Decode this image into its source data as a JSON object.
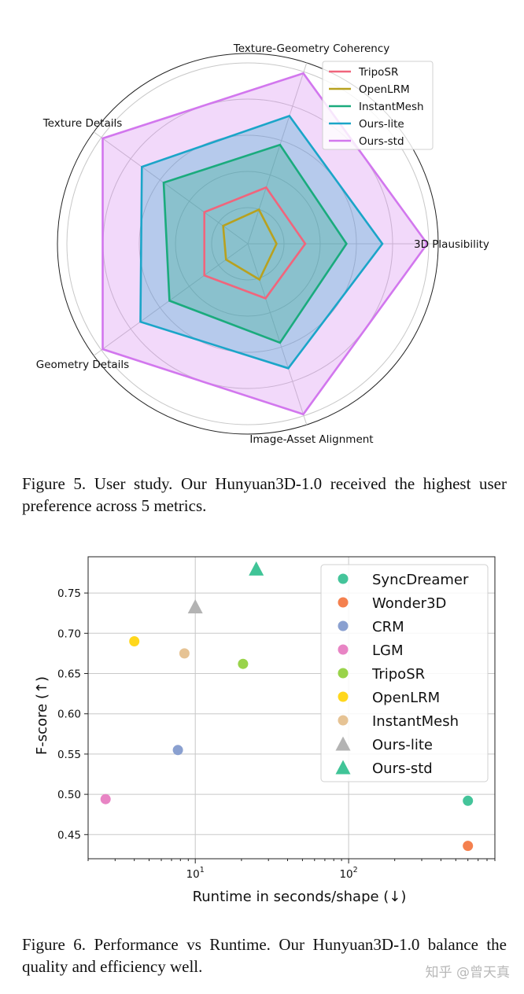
{
  "chart_data": [
    {
      "type": "radar",
      "axes": [
        "3D Plausibility",
        "Texture-Geometry Coherency",
        "Texture Details",
        "Geometry Details",
        "Image-Asset Alignment"
      ],
      "rmax": 1.0,
      "series": [
        {
          "name": "TripoSR",
          "color": "#f0657c",
          "fill": false,
          "values": [
            0.32,
            0.33,
            0.3,
            0.3,
            0.32
          ]
        },
        {
          "name": "OpenLRM",
          "color": "#b8a11f",
          "fill": false,
          "values": [
            0.16,
            0.2,
            0.17,
            0.15,
            0.21
          ]
        },
        {
          "name": "InstantMesh",
          "color": "#1aab7d",
          "fill": true,
          "values": [
            0.55,
            0.58,
            0.58,
            0.54,
            0.58
          ]
        },
        {
          "name": "Ours-lite",
          "color": "#1ba5c8",
          "fill": true,
          "values": [
            0.75,
            0.75,
            0.73,
            0.74,
            0.73
          ]
        },
        {
          "name": "Ours-std",
          "color": "#d277ee",
          "fill": true,
          "values": [
            1.0,
            1.0,
            1.0,
            1.0,
            1.0
          ]
        }
      ]
    },
    {
      "type": "scatter",
      "xscale": "log",
      "xlabel": "Runtime in seconds/shape (↓)",
      "ylabel": "F-score (↑)",
      "xlim": [
        2.0,
        900
      ],
      "ylim": [
        0.42,
        0.795
      ],
      "yticks": [
        "0.45",
        "0.50",
        "0.55",
        "0.60",
        "0.65",
        "0.70",
        "0.75"
      ],
      "xticks": [
        {
          "value": 10,
          "label": "10",
          "sup": "1"
        },
        {
          "value": 100,
          "label": "10",
          "sup": "2"
        }
      ],
      "series": [
        {
          "name": "SyncDreamer",
          "color": "#44c49a",
          "marker": "circle",
          "x": 600,
          "y": 0.492
        },
        {
          "name": "Wonder3D",
          "color": "#f4804e",
          "marker": "circle",
          "x": 600,
          "y": 0.436
        },
        {
          "name": "CRM",
          "color": "#8aa0d0",
          "marker": "circle",
          "x": 7.7,
          "y": 0.555
        },
        {
          "name": "LGM",
          "color": "#e884c4",
          "marker": "circle",
          "x": 2.6,
          "y": 0.494
        },
        {
          "name": "TripoSR",
          "color": "#99d34a",
          "marker": "circle",
          "x": 20.5,
          "y": 0.662
        },
        {
          "name": "OpenLRM",
          "color": "#ffd71c",
          "marker": "circle",
          "x": 4.0,
          "y": 0.69
        },
        {
          "name": "InstantMesh",
          "color": "#e6c394",
          "marker": "circle",
          "x": 8.5,
          "y": 0.675
        },
        {
          "name": "Ours-lite",
          "color": "#b3b3b3",
          "marker": "triangle",
          "x": 10.0,
          "y": 0.733
        },
        {
          "name": "Ours-std",
          "color": "#40c497",
          "marker": "triangle",
          "x": 25,
          "y": 0.78
        }
      ]
    }
  ],
  "captions": {
    "fig5": "Figure 5.  User study.  Our  Hunyuan3D-1.0 received the highest user preference across 5 metrics.",
    "fig6": "Figure 6. Performance vs Runtime. Our  Hunyuan3D-1.0 balance the quality and efficiency well."
  },
  "watermark": "知乎 @曾天真"
}
